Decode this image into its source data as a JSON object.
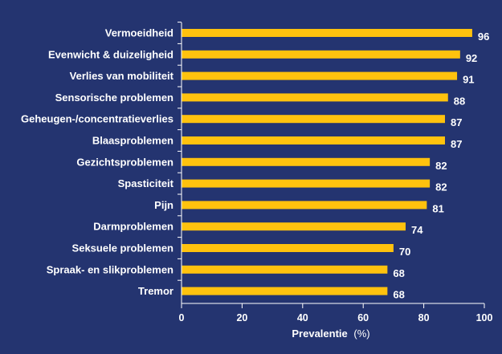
{
  "colors": {
    "background": "#243470",
    "bar": "#FFC20E",
    "axis": "#ffffff",
    "text": "#ffffff"
  },
  "chart_data": {
    "type": "bar",
    "orientation": "horizontal",
    "categories": [
      "Vermoeidheid",
      "Evenwicht & duizeligheid",
      "Verlies van mobiliteit",
      "Sensorische problemen",
      "Geheugen-/concentratieverlies",
      "Blaasproblemen",
      "Gezichtsproblemen",
      "Spasticiteit",
      "Pijn",
      "Darmproblemen",
      "Seksuele problemen",
      "Spraak- en slikproblemen",
      "Tremor"
    ],
    "values": [
      96,
      92,
      91,
      88,
      87,
      87,
      82,
      82,
      81,
      74,
      70,
      68,
      68
    ],
    "data_labels": [
      "96",
      "92",
      "91",
      "88",
      "87",
      "87",
      "82",
      "82",
      "81",
      "74",
      "70",
      "68",
      "68"
    ],
    "xlabel_main": "Prevalentie",
    "xlabel_unit": "(%)",
    "xlim": [
      0,
      100
    ],
    "xticks": [
      0,
      20,
      40,
      60,
      80,
      100
    ],
    "xtick_labels": [
      "0",
      "20",
      "40",
      "60",
      "80",
      "100"
    ],
    "grid": false,
    "legend": "none"
  }
}
